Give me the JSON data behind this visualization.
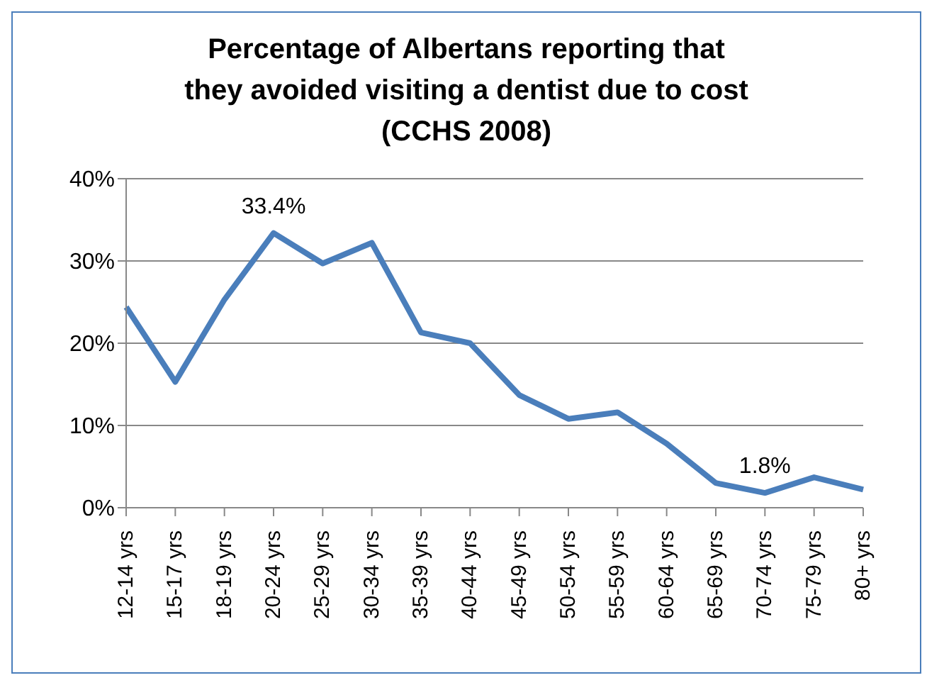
{
  "chart_data": {
    "type": "line",
    "title": "Percentage of Albertans reporting that they avoided visiting a dentist due to cost (CCHS 2008)",
    "categories": [
      "12-14 yrs",
      "15-17 yrs",
      "18-19 yrs",
      "20-24 yrs",
      "25-29 yrs",
      "30-34 yrs",
      "35-39 yrs",
      "40-44 yrs",
      "45-49 yrs",
      "50-54 yrs",
      "55-59 yrs",
      "60-64 yrs",
      "65-69 yrs",
      "70-74 yrs",
      "75-79 yrs",
      "80+ yrs"
    ],
    "series": [
      {
        "color": "#4a7ebb",
        "values": [
          24.4,
          15.3,
          25.3,
          33.4,
          29.7,
          32.2,
          21.3,
          20.0,
          13.7,
          10.8,
          11.6,
          7.8,
          3.0,
          1.8,
          3.7,
          2.2
        ],
        "value_labels": [
          null,
          null,
          null,
          "33.4%",
          null,
          null,
          null,
          null,
          null,
          null,
          null,
          null,
          null,
          "1.8%",
          null,
          null
        ]
      }
    ],
    "ylim": [
      0,
      40
    ],
    "yticks": [
      {
        "value": 0,
        "label": "0%"
      },
      {
        "value": 10,
        "label": "10%"
      },
      {
        "value": 20,
        "label": "20%"
      },
      {
        "value": 30,
        "label": "30%"
      },
      {
        "value": 40,
        "label": "40%"
      }
    ],
    "grid": "y",
    "marker": "none",
    "line_style": "solid"
  }
}
